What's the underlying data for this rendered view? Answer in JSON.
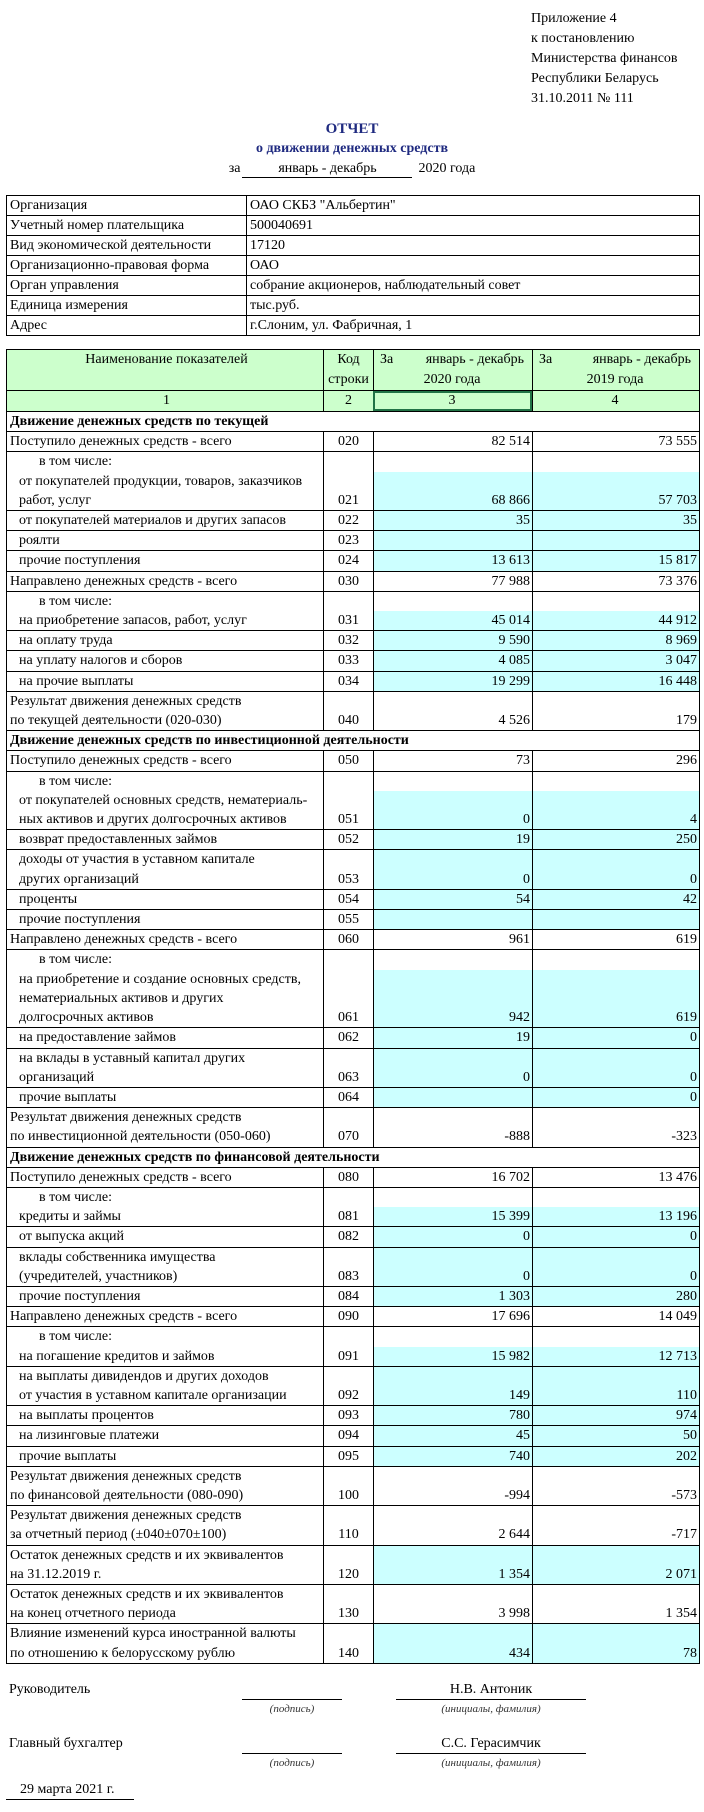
{
  "appendix": [
    "Приложение 4",
    "к постановлению",
    "Министерства финансов",
    "Республики Беларусь",
    "31.10.2011 № 111"
  ],
  "title": "ОТЧЕТ",
  "subtitle": "о движении денежных средств",
  "period": {
    "prefix": "за",
    "months": "январь  -  декабрь",
    "year": "2020 года"
  },
  "info": [
    {
      "label": "Организация",
      "value": "ОАО СКБЗ \"Альбертин\""
    },
    {
      "label": "Учетный номер плательщика",
      "value": "500040691"
    },
    {
      "label": "Вид экономической деятельности",
      "value": "17120"
    },
    {
      "label": "Организационно-правовая форма",
      "value": "ОАО"
    },
    {
      "label": "Орган управления",
      "value": "собрание акционеров, наблюдательный совет"
    },
    {
      "label": "Единица измерения",
      "value": "тыс.руб."
    },
    {
      "label": "Адрес",
      "value": "г.Слоним, ул. Фабричная, 1"
    }
  ],
  "table": {
    "headers": {
      "name": "Наименование показателей",
      "code": "Код строки",
      "cur_a": "За",
      "cur_b": "январь  -  декабрь",
      "cur_c": "2020 года",
      "prev_a": "За",
      "prev_b": "январь  -  декабрь",
      "prev_c": "2019 года",
      "nums": [
        "1",
        "2",
        "3",
        "4"
      ]
    },
    "rows": [
      {
        "section": "Движение денежных средств по текущей"
      },
      {
        "name": "Поступило денежных средств - всего",
        "code": "020",
        "v2020": "82 514",
        "v2019": "73 555"
      },
      {
        "pre": "в том числе:",
        "name": "от покупателей продукции, товаров, заказчиков\nработ, услуг",
        "code": "021",
        "v2020": "68 866",
        "v2019": "57 703",
        "blue": true,
        "ind": true
      },
      {
        "name": "от покупателей материалов и других запасов",
        "code": "022",
        "v2020": "35",
        "v2019": "35",
        "blue": true,
        "ind": true
      },
      {
        "name": "роялти",
        "code": "023",
        "v2020": "",
        "v2019": "",
        "blue": true,
        "ind": true
      },
      {
        "name": "прочие поступления",
        "code": "024",
        "v2020": "13 613",
        "v2019": "15 817",
        "blue": true,
        "ind": true
      },
      {
        "name": "Направлено денежных средств - всего",
        "code": "030",
        "v2020": "77 988",
        "v2019": "73 376"
      },
      {
        "pre": "в том числе:",
        "name": "на приобретение запасов, работ, услуг",
        "code": "031",
        "v2020": "45 014",
        "v2019": "44 912",
        "blue": true,
        "ind": true
      },
      {
        "name": "на оплату труда",
        "code": "032",
        "v2020": "9 590",
        "v2019": "8 969",
        "blue": true,
        "ind": true
      },
      {
        "name": "на уплату налогов и сборов",
        "code": "033",
        "v2020": "4 085",
        "v2019": "3 047",
        "blue": true,
        "ind": true
      },
      {
        "name": "на прочие выплаты",
        "code": "034",
        "v2020": "19 299",
        "v2019": "16 448",
        "blue": true,
        "ind": true
      },
      {
        "name": "Результат движения денежных средств\nпо текущей деятельности (020-030)",
        "code": "040",
        "v2020": "4 526",
        "v2019": "179"
      },
      {
        "section": "Движение денежных средств по инвестиционной деятельности"
      },
      {
        "name": "Поступило денежных средств - всего",
        "code": "050",
        "v2020": "73",
        "v2019": "296"
      },
      {
        "pre": "в том числе:",
        "name": "от покупателей основных средств, нематериаль-\nных активов и других долгосрочных активов",
        "code": "051",
        "v2020": "0",
        "v2019": "4",
        "blue": true,
        "ind": true
      },
      {
        "name": "возврат предоставленных займов",
        "code": "052",
        "v2020": "19",
        "v2019": "250",
        "blue": true,
        "ind": true
      },
      {
        "name": "доходы от участия в уставном капитале\nдругих организаций",
        "code": "053",
        "v2020": "0",
        "v2019": "0",
        "blue": true,
        "ind": true
      },
      {
        "name": "проценты",
        "code": "054",
        "v2020": "54",
        "v2019": "42",
        "blue": true,
        "ind": true
      },
      {
        "name": "прочие поступления",
        "code": "055",
        "v2020": "",
        "v2019": "",
        "blue": true,
        "ind": true
      },
      {
        "name": "Направлено денежных средств - всего",
        "code": "060",
        "v2020": "961",
        "v2019": "619"
      },
      {
        "pre": "в том числе:",
        "name": "на приобретение и создание основных средств,\nнематериальных активов и других\nдолгосрочных активов",
        "code": "061",
        "v2020": "942",
        "v2019": "619",
        "blue": true,
        "ind": true
      },
      {
        "name": "на предоставление займов",
        "code": "062",
        "v2020": "19",
        "v2019": "0",
        "blue": true,
        "ind": true
      },
      {
        "name": "на вклады в уставный капитал других\nорганизаций",
        "code": "063",
        "v2020": "0",
        "v2019": "0",
        "blue": true,
        "ind": true
      },
      {
        "name": "прочие выплаты",
        "code": "064",
        "v2020": "",
        "v2019": "0",
        "blue": true,
        "ind": true
      },
      {
        "name": "Результат движения денежных средств\nпо инвестиционной деятельности (050-060)",
        "code": "070",
        "v2020": "-888",
        "v2019": "-323"
      },
      {
        "section": "Движение денежных средств по финансовой деятельности"
      },
      {
        "name": "Поступило денежных средств - всего",
        "code": "080",
        "v2020": "16 702",
        "v2019": "13 476"
      },
      {
        "pre": "в том числе:",
        "name": "кредиты и займы",
        "code": "081",
        "v2020": "15 399",
        "v2019": "13 196",
        "blue": true,
        "ind": true
      },
      {
        "name": "от выпуска акций",
        "code": "082",
        "v2020": "0",
        "v2019": "0",
        "blue": true,
        "ind": true
      },
      {
        "name": "вклады собственника имущества\n(учредителей, участников)",
        "code": "083",
        "v2020": "0",
        "v2019": "0",
        "blue": true,
        "ind": true
      },
      {
        "name": "прочие поступления",
        "code": "084",
        "v2020": "1 303",
        "v2019": "280",
        "blue": true,
        "ind": true
      },
      {
        "name": "Направлено денежных средств - всего",
        "code": "090",
        "v2020": "17 696",
        "v2019": "14 049"
      },
      {
        "pre": "в том числе:",
        "name": "на погашение кредитов и займов",
        "code": "091",
        "v2020": "15 982",
        "v2019": "12 713",
        "blue": true,
        "ind": true
      },
      {
        "name": "на выплаты дивидендов и других доходов\nот участия в уставном капитале организации",
        "code": "092",
        "v2020": "149",
        "v2019": "110",
        "blue": true,
        "ind": true
      },
      {
        "name": "на выплаты процентов",
        "code": "093",
        "v2020": "780",
        "v2019": "974",
        "blue": true,
        "ind": true
      },
      {
        "name": "на лизинговые платежи",
        "code": "094",
        "v2020": "45",
        "v2019": "50",
        "blue": true,
        "ind": true
      },
      {
        "name": "прочие выплаты",
        "code": "095",
        "v2020": "740",
        "v2019": "202",
        "blue": true,
        "ind": true
      },
      {
        "name": "Результат движения денежных средств\nпо финансовой деятельности (080-090)",
        "code": "100",
        "v2020": "-994",
        "v2019": "-573"
      },
      {
        "name": "Результат движения денежных средств\nза отчетный период (±040±070±100)",
        "code": "110",
        "v2020": "2 644",
        "v2019": "-717"
      },
      {
        "name": "Остаток денежных средств и их эквивалентов\nна 31.12.2019 г.",
        "code": "120",
        "v2020": "1 354",
        "v2019": "2 071",
        "blue": true
      },
      {
        "name": "Остаток денежных средств и их эквивалентов\nна конец отчетного периода",
        "code": "130",
        "v2020": "3 998",
        "v2019": "1 354"
      },
      {
        "name": "Влияние изменений курса иностранной валюты\nпо отношению к белорусскому рублю",
        "code": "140",
        "v2020": "434",
        "v2019": "78",
        "blue": true
      }
    ]
  },
  "signatures": {
    "head_title": "Руководитель",
    "head_name": "Н.В. Антоник",
    "accountant_title": "Главный бухгалтер",
    "accountant_name": "С.С. Герасимчик",
    "sign_label": "(подпись)",
    "name_label": "(инициалы, фамилия)",
    "date": "29 марта 2021 г."
  }
}
